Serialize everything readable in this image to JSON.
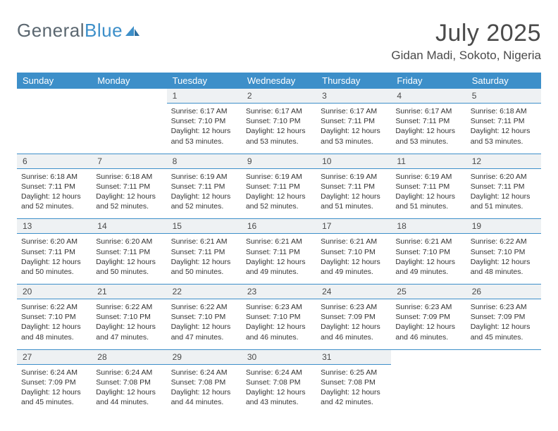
{
  "brand": {
    "part1": "General",
    "part2": "Blue"
  },
  "title": {
    "month": "July 2025",
    "location": "Gidan Madi, Sokoto, Nigeria"
  },
  "colors": {
    "header_bg": "#3d8fc9",
    "header_text": "#ffffff",
    "daynum_bg": "#eef1f3",
    "border": "#3d8fc9",
    "body_text": "#333333",
    "title_text": "#4a4a4a",
    "logo_gray": "#5b6770",
    "logo_blue": "#3d8fc9",
    "page_bg": "#ffffff"
  },
  "fonts": {
    "title_size": 34,
    "location_size": 17,
    "header_size": 13,
    "cell_size": 10.5
  },
  "day_names": [
    "Sunday",
    "Monday",
    "Tuesday",
    "Wednesday",
    "Thursday",
    "Friday",
    "Saturday"
  ],
  "weeks": [
    [
      null,
      null,
      {
        "n": "1",
        "sr": "6:17 AM",
        "ss": "7:10 PM",
        "dl": "12 hours and 53 minutes."
      },
      {
        "n": "2",
        "sr": "6:17 AM",
        "ss": "7:10 PM",
        "dl": "12 hours and 53 minutes."
      },
      {
        "n": "3",
        "sr": "6:17 AM",
        "ss": "7:11 PM",
        "dl": "12 hours and 53 minutes."
      },
      {
        "n": "4",
        "sr": "6:17 AM",
        "ss": "7:11 PM",
        "dl": "12 hours and 53 minutes."
      },
      {
        "n": "5",
        "sr": "6:18 AM",
        "ss": "7:11 PM",
        "dl": "12 hours and 53 minutes."
      }
    ],
    [
      {
        "n": "6",
        "sr": "6:18 AM",
        "ss": "7:11 PM",
        "dl": "12 hours and 52 minutes."
      },
      {
        "n": "7",
        "sr": "6:18 AM",
        "ss": "7:11 PM",
        "dl": "12 hours and 52 minutes."
      },
      {
        "n": "8",
        "sr": "6:19 AM",
        "ss": "7:11 PM",
        "dl": "12 hours and 52 minutes."
      },
      {
        "n": "9",
        "sr": "6:19 AM",
        "ss": "7:11 PM",
        "dl": "12 hours and 52 minutes."
      },
      {
        "n": "10",
        "sr": "6:19 AM",
        "ss": "7:11 PM",
        "dl": "12 hours and 51 minutes."
      },
      {
        "n": "11",
        "sr": "6:19 AM",
        "ss": "7:11 PM",
        "dl": "12 hours and 51 minutes."
      },
      {
        "n": "12",
        "sr": "6:20 AM",
        "ss": "7:11 PM",
        "dl": "12 hours and 51 minutes."
      }
    ],
    [
      {
        "n": "13",
        "sr": "6:20 AM",
        "ss": "7:11 PM",
        "dl": "12 hours and 50 minutes."
      },
      {
        "n": "14",
        "sr": "6:20 AM",
        "ss": "7:11 PM",
        "dl": "12 hours and 50 minutes."
      },
      {
        "n": "15",
        "sr": "6:21 AM",
        "ss": "7:11 PM",
        "dl": "12 hours and 50 minutes."
      },
      {
        "n": "16",
        "sr": "6:21 AM",
        "ss": "7:11 PM",
        "dl": "12 hours and 49 minutes."
      },
      {
        "n": "17",
        "sr": "6:21 AM",
        "ss": "7:10 PM",
        "dl": "12 hours and 49 minutes."
      },
      {
        "n": "18",
        "sr": "6:21 AM",
        "ss": "7:10 PM",
        "dl": "12 hours and 49 minutes."
      },
      {
        "n": "19",
        "sr": "6:22 AM",
        "ss": "7:10 PM",
        "dl": "12 hours and 48 minutes."
      }
    ],
    [
      {
        "n": "20",
        "sr": "6:22 AM",
        "ss": "7:10 PM",
        "dl": "12 hours and 48 minutes."
      },
      {
        "n": "21",
        "sr": "6:22 AM",
        "ss": "7:10 PM",
        "dl": "12 hours and 47 minutes."
      },
      {
        "n": "22",
        "sr": "6:22 AM",
        "ss": "7:10 PM",
        "dl": "12 hours and 47 minutes."
      },
      {
        "n": "23",
        "sr": "6:23 AM",
        "ss": "7:10 PM",
        "dl": "12 hours and 46 minutes."
      },
      {
        "n": "24",
        "sr": "6:23 AM",
        "ss": "7:09 PM",
        "dl": "12 hours and 46 minutes."
      },
      {
        "n": "25",
        "sr": "6:23 AM",
        "ss": "7:09 PM",
        "dl": "12 hours and 46 minutes."
      },
      {
        "n": "26",
        "sr": "6:23 AM",
        "ss": "7:09 PM",
        "dl": "12 hours and 45 minutes."
      }
    ],
    [
      {
        "n": "27",
        "sr": "6:24 AM",
        "ss": "7:09 PM",
        "dl": "12 hours and 45 minutes."
      },
      {
        "n": "28",
        "sr": "6:24 AM",
        "ss": "7:08 PM",
        "dl": "12 hours and 44 minutes."
      },
      {
        "n": "29",
        "sr": "6:24 AM",
        "ss": "7:08 PM",
        "dl": "12 hours and 44 minutes."
      },
      {
        "n": "30",
        "sr": "6:24 AM",
        "ss": "7:08 PM",
        "dl": "12 hours and 43 minutes."
      },
      {
        "n": "31",
        "sr": "6:25 AM",
        "ss": "7:08 PM",
        "dl": "12 hours and 42 minutes."
      },
      null,
      null
    ]
  ],
  "labels": {
    "sunrise": "Sunrise:",
    "sunset": "Sunset:",
    "daylight": "Daylight:"
  }
}
